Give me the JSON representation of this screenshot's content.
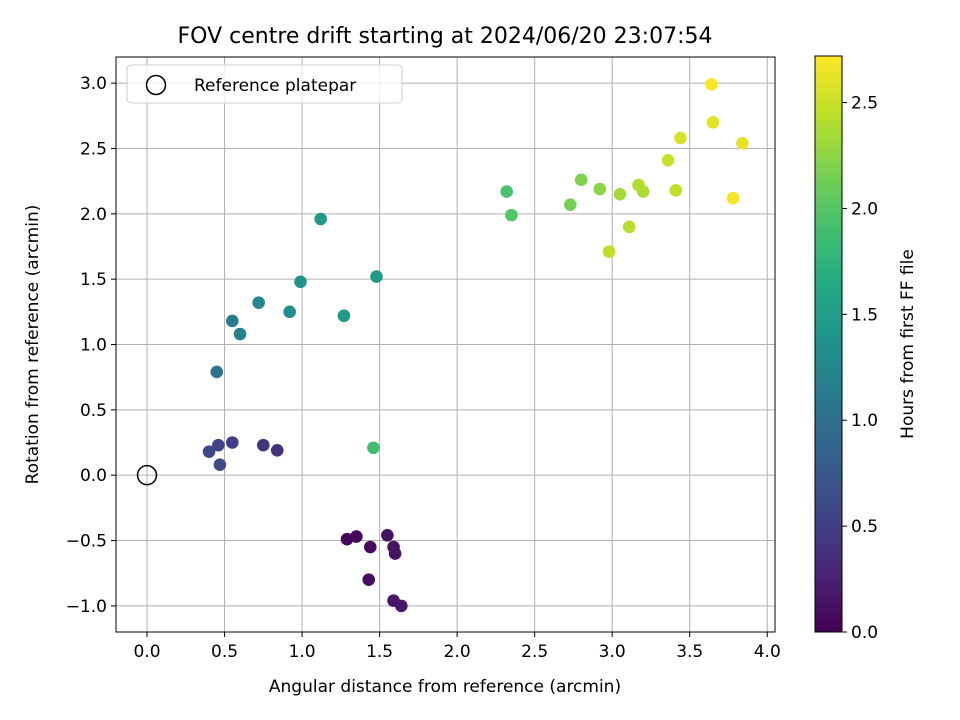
{
  "chart_data": {
    "type": "scatter",
    "title": "FOV centre drift starting at 2024/06/20 23:07:54",
    "xlabel": "Angular distance from reference (arcmin)",
    "ylabel": "Rotation from reference (arcmin)",
    "xlim": [
      -0.2,
      4.05
    ],
    "ylim": [
      -1.2,
      3.2
    ],
    "x_ticks": [
      0.0,
      0.5,
      1.0,
      1.5,
      2.0,
      2.5,
      3.0,
      3.5,
      4.0
    ],
    "x_tick_labels": [
      "0.0",
      "0.5",
      "1.0",
      "1.5",
      "2.0",
      "2.5",
      "3.0",
      "3.5",
      "4.0"
    ],
    "y_ticks": [
      -1.0,
      -0.5,
      0.0,
      0.5,
      1.0,
      1.5,
      2.0,
      2.5,
      3.0
    ],
    "y_tick_labels": [
      "−1.0",
      "−0.5",
      "0.0",
      "0.5",
      "1.0",
      "1.5",
      "2.0",
      "2.5",
      "3.0"
    ],
    "grid": true,
    "legend": {
      "placement": "top-left",
      "entries": [
        "Reference platepar"
      ]
    },
    "reference_point": {
      "x": 0.0,
      "y": 0.0
    },
    "colorbar": {
      "label": "Hours from first FF file",
      "colormap": "viridis",
      "range": [
        0.0,
        2.72
      ],
      "ticks": [
        0.0,
        0.5,
        1.0,
        1.5,
        2.0,
        2.5
      ],
      "tick_labels": [
        "0.0",
        "0.5",
        "1.0",
        "1.5",
        "2.0",
        "2.5"
      ]
    },
    "points": [
      {
        "x": 1.29,
        "y": -0.49,
        "c": 0.03
      },
      {
        "x": 1.35,
        "y": -0.47,
        "c": 0.05
      },
      {
        "x": 1.44,
        "y": -0.55,
        "c": 0.08
      },
      {
        "x": 1.43,
        "y": -0.8,
        "c": 0.1
      },
      {
        "x": 1.55,
        "y": -0.46,
        "c": 0.12
      },
      {
        "x": 1.59,
        "y": -0.55,
        "c": 0.13
      },
      {
        "x": 1.6,
        "y": -0.6,
        "c": 0.14
      },
      {
        "x": 1.59,
        "y": -0.96,
        "c": 0.16
      },
      {
        "x": 1.64,
        "y": -1.0,
        "c": 0.18
      },
      {
        "x": 0.84,
        "y": 0.19,
        "c": 0.38
      },
      {
        "x": 0.75,
        "y": 0.23,
        "c": 0.42
      },
      {
        "x": 0.55,
        "y": 0.25,
        "c": 0.5
      },
      {
        "x": 0.46,
        "y": 0.23,
        "c": 0.54
      },
      {
        "x": 0.4,
        "y": 0.18,
        "c": 0.58
      },
      {
        "x": 0.47,
        "y": 0.08,
        "c": 0.62
      },
      {
        "x": 0.45,
        "y": 0.79,
        "c": 1.02
      },
      {
        "x": 0.55,
        "y": 1.18,
        "c": 1.12
      },
      {
        "x": 0.6,
        "y": 1.08,
        "c": 1.17
      },
      {
        "x": 0.72,
        "y": 1.32,
        "c": 1.25
      },
      {
        "x": 0.92,
        "y": 1.25,
        "c": 1.34
      },
      {
        "x": 0.99,
        "y": 1.48,
        "c": 1.37
      },
      {
        "x": 1.27,
        "y": 1.22,
        "c": 1.45
      },
      {
        "x": 1.12,
        "y": 1.96,
        "c": 1.46
      },
      {
        "x": 1.48,
        "y": 1.52,
        "c": 1.48
      },
      {
        "x": 1.46,
        "y": 0.21,
        "c": 1.88
      },
      {
        "x": 2.32,
        "y": 2.17,
        "c": 1.93
      },
      {
        "x": 2.35,
        "y": 1.99,
        "c": 1.98
      },
      {
        "x": 2.73,
        "y": 2.07,
        "c": 2.15
      },
      {
        "x": 2.8,
        "y": 2.26,
        "c": 2.2
      },
      {
        "x": 2.92,
        "y": 2.19,
        "c": 2.25
      },
      {
        "x": 3.05,
        "y": 2.15,
        "c": 2.33
      },
      {
        "x": 3.2,
        "y": 2.17,
        "c": 2.37
      },
      {
        "x": 3.17,
        "y": 2.22,
        "c": 2.4
      },
      {
        "x": 3.11,
        "y": 1.9,
        "c": 2.42
      },
      {
        "x": 2.98,
        "y": 1.71,
        "c": 2.45
      },
      {
        "x": 3.41,
        "y": 2.18,
        "c": 2.47
      },
      {
        "x": 3.36,
        "y": 2.41,
        "c": 2.5
      },
      {
        "x": 3.44,
        "y": 2.58,
        "c": 2.54
      },
      {
        "x": 3.65,
        "y": 2.7,
        "c": 2.6
      },
      {
        "x": 3.84,
        "y": 2.54,
        "c": 2.63
      },
      {
        "x": 3.78,
        "y": 2.12,
        "c": 2.68
      },
      {
        "x": 3.64,
        "y": 2.99,
        "c": 2.7
      }
    ]
  }
}
